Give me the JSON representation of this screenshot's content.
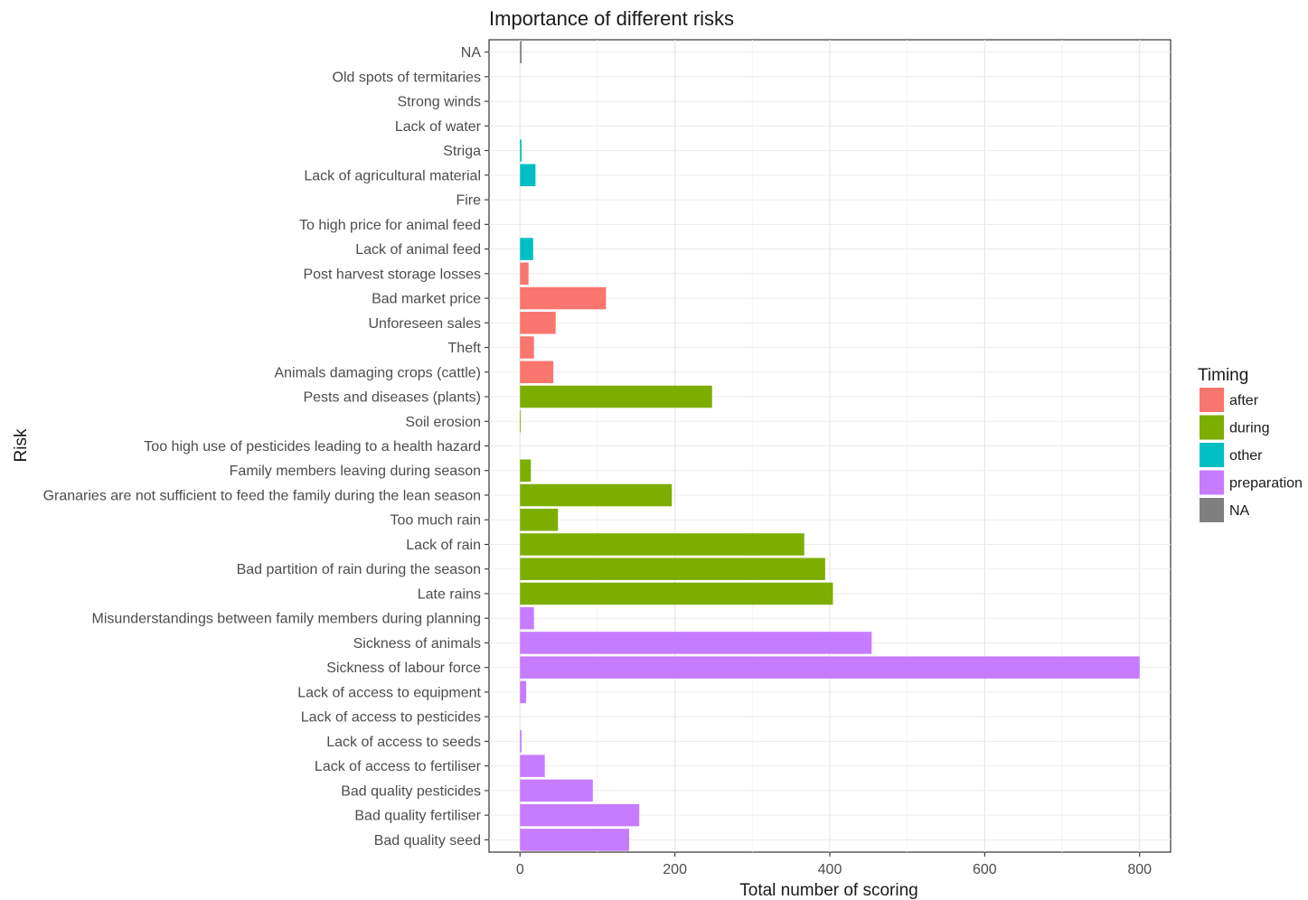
{
  "chart_data": {
    "type": "bar",
    "orientation": "horizontal",
    "title": "Importance of different risks",
    "xlabel": "Total number of scoring",
    "ylabel": "Risk",
    "xlim": [
      -40,
      840
    ],
    "x_ticks": [
      0,
      200,
      400,
      600,
      800
    ],
    "grid": true,
    "legend": {
      "title": "Timing",
      "position": "right",
      "entries": [
        {
          "label": "after",
          "color": "#F8766D"
        },
        {
          "label": "during",
          "color": "#7CAE00"
        },
        {
          "label": "other",
          "color": "#00BFC4"
        },
        {
          "label": "preparation",
          "color": "#C77CFF"
        },
        {
          "label": "NA",
          "color": "#7F7F7F"
        }
      ]
    },
    "categories": [
      "NA",
      "Old spots of termitaries",
      "Strong winds",
      "Lack of water",
      "Striga",
      "Lack of agricultural material",
      "Fire",
      "To high price for animal feed",
      "Lack of animal feed",
      "Post harvest storage losses",
      "Bad market price",
      "Unforeseen sales",
      "Theft",
      "Animals damaging crops (cattle)",
      "Pests and diseases (plants)",
      "Soil erosion",
      "Too high use of pesticides leading to a health hazard",
      "Family members leaving during season",
      "Granaries are not sufficient to feed the family during the lean season",
      "Too much rain",
      "Lack of rain",
      "Bad partition of rain during the season",
      "Late rains",
      "Misunderstandings between family members during planning",
      "Sickness of animals",
      "Sickness of labour force",
      "Lack of access to equipment",
      "Lack of access to pesticides",
      "Lack of access to seeds",
      "Lack of access to fertiliser",
      "Bad quality pesticides",
      "Bad quality fertiliser",
      "Bad quality seed"
    ],
    "values": [
      2,
      0,
      0,
      0,
      2,
      20,
      0,
      0,
      17,
      11,
      111,
      46,
      18,
      43,
      248,
      1,
      0,
      14,
      196,
      49,
      367,
      394,
      404,
      18,
      454,
      800,
      8,
      0,
      2,
      32,
      94,
      154,
      141
    ],
    "timing": [
      "NA",
      "after",
      "after",
      "other",
      "other",
      "other",
      "after",
      "after",
      "other",
      "after",
      "after",
      "after",
      "after",
      "after",
      "during",
      "during",
      "during",
      "during",
      "during",
      "during",
      "during",
      "during",
      "during",
      "preparation",
      "preparation",
      "preparation",
      "preparation",
      "preparation",
      "preparation",
      "preparation",
      "preparation",
      "preparation",
      "preparation"
    ]
  }
}
